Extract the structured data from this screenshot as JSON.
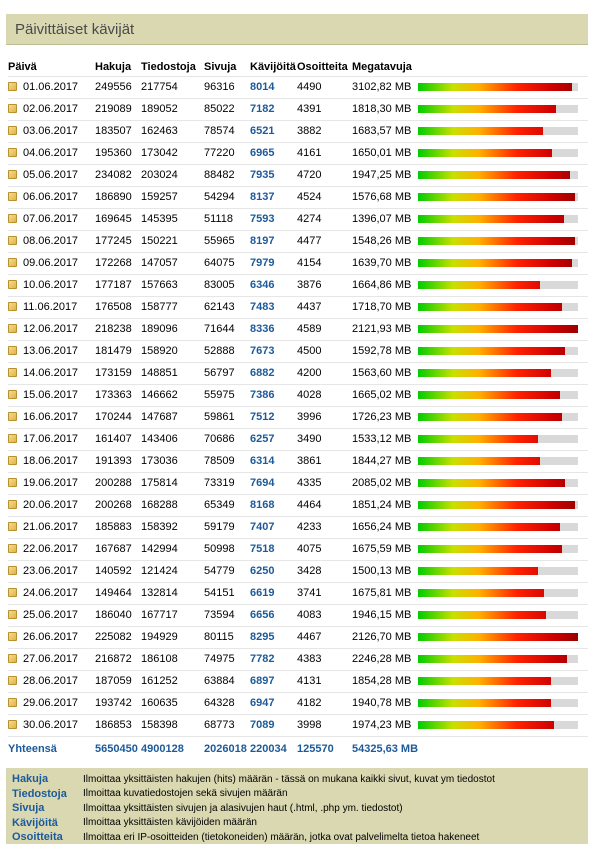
{
  "panel": {
    "title": "Päivittäiset kävijät"
  },
  "table": {
    "headers": {
      "date": "Päivä",
      "hits": "Hakuja",
      "files": "Tiedostoja",
      "pages": "Sivuja",
      "visits": "Kävijöitä",
      "sites": "Osoitteita",
      "mb": "Megatavuja"
    },
    "rows": [
      {
        "date": "01.06.2017",
        "hits": "249556",
        "files": "217754",
        "pages": "96316",
        "visits": "8014",
        "sites": "4490",
        "mb": "3102,82 MB",
        "bar": 0.96
      },
      {
        "date": "02.06.2017",
        "hits": "219089",
        "files": "189052",
        "pages": "85022",
        "visits": "7182",
        "sites": "4391",
        "mb": "1818,30 MB",
        "bar": 0.86
      },
      {
        "date": "03.06.2017",
        "hits": "183507",
        "files": "162463",
        "pages": "78574",
        "visits": "6521",
        "sites": "3882",
        "mb": "1683,57 MB",
        "bar": 0.78
      },
      {
        "date": "04.06.2017",
        "hits": "195360",
        "files": "173042",
        "pages": "77220",
        "visits": "6965",
        "sites": "4161",
        "mb": "1650,01 MB",
        "bar": 0.84
      },
      {
        "date": "05.06.2017",
        "hits": "234082",
        "files": "203024",
        "pages": "88482",
        "visits": "7935",
        "sites": "4720",
        "mb": "1947,25 MB",
        "bar": 0.95
      },
      {
        "date": "06.06.2017",
        "hits": "186890",
        "files": "159257",
        "pages": "54294",
        "visits": "8137",
        "sites": "4524",
        "mb": "1576,68 MB",
        "bar": 0.98
      },
      {
        "date": "07.06.2017",
        "hits": "169645",
        "files": "145395",
        "pages": "51118",
        "visits": "7593",
        "sites": "4274",
        "mb": "1396,07 MB",
        "bar": 0.91
      },
      {
        "date": "08.06.2017",
        "hits": "177245",
        "files": "150221",
        "pages": "55965",
        "visits": "8197",
        "sites": "4477",
        "mb": "1548,26 MB",
        "bar": 0.98
      },
      {
        "date": "09.06.2017",
        "hits": "172268",
        "files": "147057",
        "pages": "64075",
        "visits": "7979",
        "sites": "4154",
        "mb": "1639,70 MB",
        "bar": 0.96
      },
      {
        "date": "10.06.2017",
        "hits": "177187",
        "files": "157663",
        "pages": "83005",
        "visits": "6346",
        "sites": "3876",
        "mb": "1664,86 MB",
        "bar": 0.76
      },
      {
        "date": "11.06.2017",
        "hits": "176508",
        "files": "158777",
        "pages": "62143",
        "visits": "7483",
        "sites": "4437",
        "mb": "1718,70 MB",
        "bar": 0.9
      },
      {
        "date": "12.06.2017",
        "hits": "218238",
        "files": "189096",
        "pages": "71644",
        "visits": "8336",
        "sites": "4589",
        "mb": "2121,93 MB",
        "bar": 1.0
      },
      {
        "date": "13.06.2017",
        "hits": "181479",
        "files": "158920",
        "pages": "52888",
        "visits": "7673",
        "sites": "4500",
        "mb": "1592,78 MB",
        "bar": 0.92
      },
      {
        "date": "14.06.2017",
        "hits": "173159",
        "files": "148851",
        "pages": "56797",
        "visits": "6882",
        "sites": "4200",
        "mb": "1563,60 MB",
        "bar": 0.83
      },
      {
        "date": "15.06.2017",
        "hits": "173363",
        "files": "146662",
        "pages": "55975",
        "visits": "7386",
        "sites": "4028",
        "mb": "1665,02 MB",
        "bar": 0.89
      },
      {
        "date": "16.06.2017",
        "hits": "170244",
        "files": "147687",
        "pages": "59861",
        "visits": "7512",
        "sites": "3996",
        "mb": "1726,23 MB",
        "bar": 0.9
      },
      {
        "date": "17.06.2017",
        "hits": "161407",
        "files": "143406",
        "pages": "70686",
        "visits": "6257",
        "sites": "3490",
        "mb": "1533,12 MB",
        "bar": 0.75
      },
      {
        "date": "18.06.2017",
        "hits": "191393",
        "files": "173036",
        "pages": "78509",
        "visits": "6314",
        "sites": "3861",
        "mb": "1844,27 MB",
        "bar": 0.76
      },
      {
        "date": "19.06.2017",
        "hits": "200288",
        "files": "175814",
        "pages": "73319",
        "visits": "7694",
        "sites": "4335",
        "mb": "2085,02 MB",
        "bar": 0.92
      },
      {
        "date": "20.06.2017",
        "hits": "200268",
        "files": "168288",
        "pages": "65349",
        "visits": "8168",
        "sites": "4464",
        "mb": "1851,24 MB",
        "bar": 0.98
      },
      {
        "date": "21.06.2017",
        "hits": "185883",
        "files": "158392",
        "pages": "59179",
        "visits": "7407",
        "sites": "4233",
        "mb": "1656,24 MB",
        "bar": 0.89
      },
      {
        "date": "22.06.2017",
        "hits": "167687",
        "files": "142994",
        "pages": "50998",
        "visits": "7518",
        "sites": "4075",
        "mb": "1675,59 MB",
        "bar": 0.9
      },
      {
        "date": "23.06.2017",
        "hits": "140592",
        "files": "121424",
        "pages": "54779",
        "visits": "6250",
        "sites": "3428",
        "mb": "1500,13 MB",
        "bar": 0.75
      },
      {
        "date": "24.06.2017",
        "hits": "149464",
        "files": "132814",
        "pages": "54151",
        "visits": "6619",
        "sites": "3741",
        "mb": "1675,81 MB",
        "bar": 0.79
      },
      {
        "date": "25.06.2017",
        "hits": "186040",
        "files": "167717",
        "pages": "73594",
        "visits": "6656",
        "sites": "4083",
        "mb": "1946,15 MB",
        "bar": 0.8
      },
      {
        "date": "26.06.2017",
        "hits": "225082",
        "files": "194929",
        "pages": "80115",
        "visits": "8295",
        "sites": "4467",
        "mb": "2126,70 MB",
        "bar": 1.0
      },
      {
        "date": "27.06.2017",
        "hits": "216872",
        "files": "186108",
        "pages": "74975",
        "visits": "7782",
        "sites": "4383",
        "mb": "2246,28 MB",
        "bar": 0.93
      },
      {
        "date": "28.06.2017",
        "hits": "187059",
        "files": "161252",
        "pages": "63884",
        "visits": "6897",
        "sites": "4131",
        "mb": "1854,28 MB",
        "bar": 0.83
      },
      {
        "date": "29.06.2017",
        "hits": "193742",
        "files": "160635",
        "pages": "64328",
        "visits": "6947",
        "sites": "4182",
        "mb": "1940,78 MB",
        "bar": 0.83
      },
      {
        "date": "30.06.2017",
        "hits": "186853",
        "files": "158398",
        "pages": "68773",
        "visits": "7089",
        "sites": "3998",
        "mb": "1974,23 MB",
        "bar": 0.85
      }
    ],
    "total": {
      "label": "Yhteensä",
      "hits": "5650450",
      "files": "4900128",
      "pages": "2026018",
      "visits": "220034",
      "sites": "125570",
      "mb": "54325,63 MB"
    }
  },
  "legend": [
    {
      "term": "Hakuja",
      "desc": "Ilmoittaa yksittäisten hakujen (hits) määrän - tässä on mukana kaikki sivut, kuvat ym tiedostot"
    },
    {
      "term": "Tiedostoja",
      "desc": "Ilmoittaa kuvatiedostojen sekä sivujen määrän"
    },
    {
      "term": "Sivuja",
      "desc": "Ilmoittaa yksittäisten sivujen ja alasivujen haut (.html, .php ym. tiedostot)"
    },
    {
      "term": "Kävijöitä",
      "desc": "Ilmoittaa yksittäisten kävijöiden määrän"
    },
    {
      "term": "Osoitteita",
      "desc": "Ilmoittaa eri IP-osoitteiden (tietokoneiden) määrän, jotka ovat palvelimelta tietoa hakeneet"
    }
  ],
  "icons": {
    "row_icon": "document-icon"
  },
  "colors": {
    "header_bg": "#d9d8b1",
    "link_blue": "#1d5a9a",
    "bar_track": "#d9d9d9"
  }
}
